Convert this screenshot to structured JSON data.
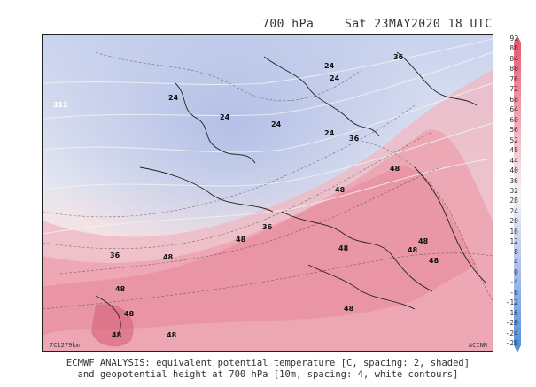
{
  "header": {
    "level": "700 hPa",
    "datetime": "Sat 23MAY2020 18 UTC"
  },
  "map": {
    "corner_left": "7C1279km",
    "corner_right": "ACINN",
    "contour_labels": [
      "24",
      "24",
      "24",
      "24",
      "24",
      "24",
      "36",
      "36",
      "36",
      "36",
      "48",
      "48",
      "48",
      "48",
      "48",
      "48",
      "48",
      "48",
      "48",
      "48",
      "48",
      "48",
      "48"
    ],
    "white_contour_label": "312"
  },
  "colorbar": {
    "ticks": [
      "92",
      "88",
      "84",
      "80",
      "76",
      "72",
      "68",
      "64",
      "60",
      "56",
      "52",
      "48",
      "44",
      "40",
      "36",
      "32",
      "28",
      "24",
      "20",
      "16",
      "12",
      "8",
      "4",
      "0",
      "-4",
      "-8",
      "-12",
      "-16",
      "-20",
      "-24",
      "-28"
    ],
    "color_top": "#e8536a",
    "color_mid": "#f4f4f4",
    "color_bottom": "#4a8fe0"
  },
  "caption": {
    "line1": "ECMWF ANALYSIS: equivalent potential temperature [C, spacing: 2, shaded]",
    "line2": "and geopotential height at 700 hPa [10m, spacing: 4, white contours]"
  }
}
